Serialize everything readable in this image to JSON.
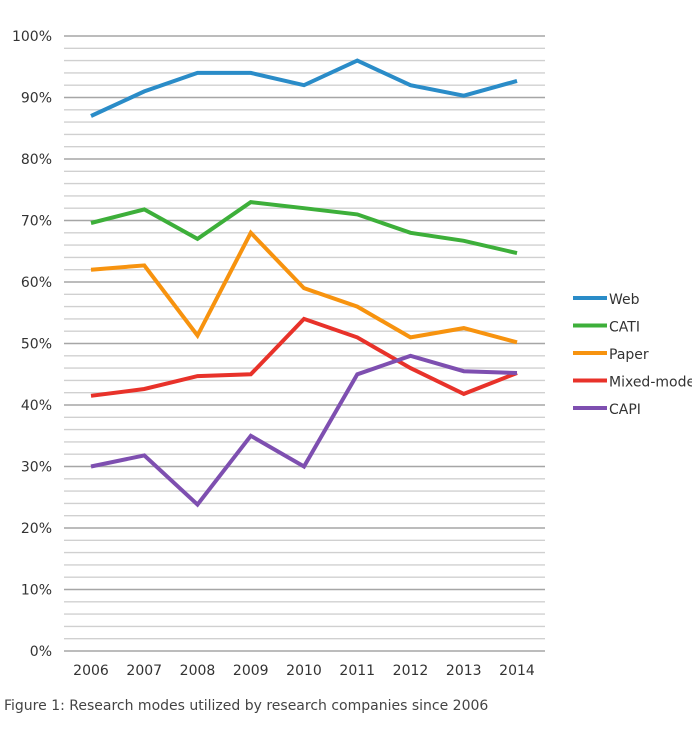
{
  "chart_data": {
    "type": "line",
    "title": "",
    "xlabel": "",
    "ylabel": "",
    "x": [
      "2006",
      "2007",
      "2008",
      "2009",
      "2010",
      "2011",
      "2012",
      "2013",
      "2014"
    ],
    "ylim": [
      0,
      100
    ],
    "y_ticks": [
      "0%",
      "10%",
      "20%",
      "30%",
      "40%",
      "50%",
      "60%",
      "70%",
      "80%",
      "90%",
      "100%"
    ],
    "y_tick_values": [
      0,
      10,
      20,
      30,
      40,
      50,
      60,
      70,
      80,
      90,
      100
    ],
    "minor_grid_step": 2,
    "grid": true,
    "legend_position": "right",
    "series": [
      {
        "name": "Web",
        "color": "#2a8cc8",
        "values": [
          87,
          91,
          94,
          94,
          92,
          96,
          92,
          90.3,
          92.7
        ]
      },
      {
        "name": "CATI",
        "color": "#3daf3a",
        "values": [
          69.6,
          71.8,
          67,
          73,
          72,
          71,
          68,
          66.7,
          64.7
        ]
      },
      {
        "name": "Paper",
        "color": "#f7930f",
        "values": [
          62,
          62.7,
          51.3,
          68,
          59,
          56,
          51,
          52.5,
          50.2
        ]
      },
      {
        "name": "Mixed-mode",
        "color": "#e8322a",
        "values": [
          41.5,
          42.6,
          44.7,
          45,
          54,
          51,
          46,
          41.8,
          45.2
        ]
      },
      {
        "name": "CAPI",
        "color": "#7e4fb0",
        "values": [
          30,
          31.8,
          23.8,
          35,
          30,
          45,
          48,
          45.5,
          45.2
        ]
      }
    ]
  },
  "caption": "Figure 1: Research modes utilized by research companies since 2006"
}
